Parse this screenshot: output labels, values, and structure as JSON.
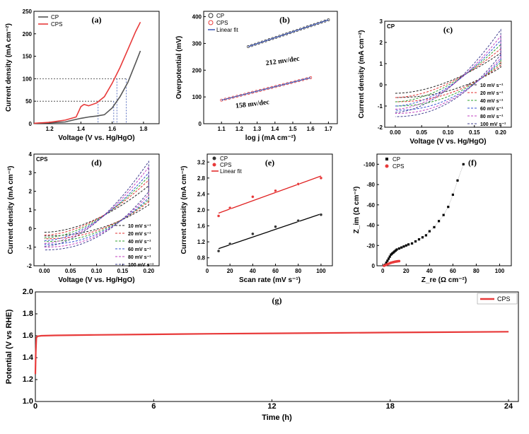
{
  "chart_data": [
    {
      "id": "a",
      "type": "line",
      "panel_label": "(a)",
      "xlabel": "Voltage (V vs. Hg/HgO)",
      "ylabel": "Current density (mA cm⁻²)",
      "xlim": [
        1.1,
        1.9
      ],
      "ylim": [
        0,
        250
      ],
      "xticks": [
        "1.2",
        "1.4",
        "1.6",
        "1.8"
      ],
      "yticks": [
        "0",
        "50",
        "100",
        "150",
        "200",
        "250"
      ],
      "legend_position": "top-left",
      "series": [
        {
          "name": "CP",
          "color": "#555555",
          "x": [
            1.1,
            1.2,
            1.3,
            1.35,
            1.4,
            1.45,
            1.5,
            1.55,
            1.6,
            1.65,
            1.7,
            1.75,
            1.78
          ],
          "y": [
            1,
            2,
            4,
            8,
            12,
            15,
            17,
            20,
            35,
            60,
            92,
            135,
            162
          ]
        },
        {
          "name": "CPS",
          "color": "#e83a3a",
          "x": [
            1.1,
            1.2,
            1.3,
            1.37,
            1.4,
            1.42,
            1.45,
            1.5,
            1.55,
            1.6,
            1.65,
            1.7,
            1.75,
            1.78
          ],
          "y": [
            1,
            3,
            8,
            15,
            38,
            43,
            40,
            46,
            60,
            90,
            125,
            165,
            205,
            226
          ]
        }
      ],
      "reference_lines": [
        {
          "y": 50,
          "x": [
            1.51,
            1.61
          ]
        },
        {
          "y": 100,
          "x": [
            1.63,
            1.69
          ]
        }
      ]
    },
    {
      "id": "b",
      "type": "scatter",
      "panel_label": "(b)",
      "xlabel": "log j (mA cm⁻²)",
      "ylabel": "Overpotential (mV)",
      "xlim": [
        1.0,
        1.75
      ],
      "ylim": [
        0,
        420
      ],
      "xticks": [
        "1.1",
        "1.2",
        "1.3",
        "1.4",
        "1.5",
        "1.6",
        "1.7"
      ],
      "yticks": [
        "0",
        "100",
        "200",
        "300",
        "400"
      ],
      "legend_position": "top-left",
      "linear_fit_label": "Linear fit",
      "series": [
        {
          "name": "CP",
          "color": "#333333",
          "x_range": [
            1.25,
            1.7
          ],
          "y_range": [
            288,
            388
          ],
          "slope_label": "212 mv/dec"
        },
        {
          "name": "CPS",
          "color": "#e83a3a",
          "x_range": [
            1.1,
            1.6
          ],
          "y_range": [
            88,
            172
          ],
          "slope_label": "158 mv/dec"
        }
      ],
      "fit_color": "#3a55b5"
    },
    {
      "id": "c",
      "type": "line",
      "panel_label": "(c)",
      "corner_label": "CP",
      "xlabel": "Voltage (V vs. Hg/HgO)",
      "ylabel": "Current density (mA cm⁻²)",
      "xlim": [
        -0.02,
        0.22
      ],
      "ylim": [
        -2,
        3
      ],
      "xticks": [
        "0.00",
        "0.05",
        "0.10",
        "0.15",
        "0.20"
      ],
      "yticks": [
        "-2",
        "-1",
        "0",
        "1",
        "2",
        "3"
      ],
      "legend_position": "right",
      "scan_rates": [
        "10 mV s⁻¹",
        "20 mV s⁻¹",
        "40 mV s⁻¹",
        "60 mV s⁻¹",
        "80 mV s⁻¹",
        "100 mV s⁻¹"
      ],
      "colors": [
        "#222222",
        "#e03030",
        "#30a030",
        "#3050d0",
        "#c040c0",
        "#404090"
      ],
      "anodic_top": [
        1.5,
        1.7,
        1.9,
        2.1,
        2.3,
        2.6
      ],
      "cathodic_bottom": [
        -0.6,
        -0.8,
        -1.0,
        -1.2,
        -1.35,
        -1.5
      ]
    },
    {
      "id": "d",
      "type": "line",
      "panel_label": "(d)",
      "corner_label": "CPS",
      "xlabel": "Voltage (V vs. Hg/HgO)",
      "ylabel": "Current density (mA cm⁻²)",
      "xlim": [
        -0.02,
        0.22
      ],
      "ylim": [
        -2,
        4
      ],
      "xticks": [
        "0.00",
        "0.05",
        "0.10",
        "0.15",
        "0.20"
      ],
      "yticks": [
        "-2",
        "-1",
        "0",
        "1",
        "2",
        "3",
        "4"
      ],
      "legend_position": "bottom-right",
      "scan_rates": [
        "10 mV s⁻¹",
        "20 mV s⁻¹",
        "40 mV s⁻¹",
        "60 mV s⁻¹",
        "80 mV s⁻¹",
        "100 mV s⁻¹"
      ],
      "colors": [
        "#222222",
        "#e03030",
        "#30a030",
        "#3050d0",
        "#c040c0",
        "#404090"
      ],
      "anodic_top": [
        2.3,
        2.6,
        2.8,
        3.0,
        3.3,
        3.6
      ],
      "cathodic_bottom": [
        -0.4,
        -0.55,
        -0.7,
        -0.85,
        -1.0,
        -1.15
      ]
    },
    {
      "id": "e",
      "type": "scatter",
      "panel_label": "(e)",
      "xlabel": "Scan rate (mV s⁻¹)",
      "ylabel": "Current density (mA cm⁻²)",
      "xlim": [
        0,
        110
      ],
      "ylim": [
        0.6,
        3.4
      ],
      "xticks": [
        "0",
        "20",
        "40",
        "60",
        "80",
        "100"
      ],
      "yticks": [
        "0.8",
        "1.2",
        "1.6",
        "2.0",
        "2.4",
        "2.8",
        "3.2"
      ],
      "legend_position": "top-left",
      "linear_fit_label": "Linear fit",
      "series": [
        {
          "name": "CP",
          "color": "#333333",
          "x": [
            10,
            20,
            40,
            60,
            80,
            100
          ],
          "y": [
            0.97,
            1.15,
            1.4,
            1.58,
            1.73,
            1.88
          ],
          "fit": [
            1.03,
            1.9
          ]
        },
        {
          "name": "CPS",
          "color": "#e83a3a",
          "x": [
            10,
            20,
            40,
            60,
            80,
            100
          ],
          "y": [
            1.85,
            2.05,
            2.33,
            2.48,
            2.65,
            2.8
          ],
          "fit": [
            1.92,
            2.85
          ]
        }
      ]
    },
    {
      "id": "f",
      "type": "scatter",
      "panel_label": "(f)",
      "xlabel": "Z_re (Ω cm⁻²)",
      "ylabel": "Z_im (Ω cm⁻²)",
      "xlim": [
        -5,
        110
      ],
      "ylim": [
        0,
        -110
      ],
      "xticks": [
        "0",
        "20",
        "40",
        "60",
        "80",
        "100"
      ],
      "yticks": [
        "0",
        "-20",
        "-40",
        "-60",
        "-80",
        "-100"
      ],
      "legend_position": "top-left",
      "series": [
        {
          "name": "CP",
          "color": "#000000",
          "x": [
            2,
            3,
            4,
            5,
            6,
            7,
            8,
            9,
            10,
            11,
            12,
            14,
            16,
            18,
            20,
            22,
            25,
            28,
            31,
            34,
            37,
            40,
            44,
            48,
            52,
            56,
            60,
            64,
            69
          ],
          "y": [
            -1,
            -3,
            -5,
            -7,
            -9,
            -11,
            -12,
            -13,
            -14,
            -15,
            -16,
            -17,
            -18,
            -19,
            -20,
            -21,
            -22,
            -24,
            -26,
            -28,
            -30,
            -34,
            -38,
            -44,
            -50,
            -58,
            -70,
            -84,
            -100
          ]
        },
        {
          "name": "CPS",
          "color": "#e83a3a",
          "x": [
            1,
            2,
            3,
            4,
            5,
            6,
            7,
            8,
            9,
            10,
            11,
            12,
            13,
            14
          ],
          "y": [
            0,
            -0.5,
            -1,
            -1.5,
            -2,
            -2.5,
            -3,
            -3.3,
            -3.6,
            -3.9,
            -4.1,
            -4.3,
            -4.5,
            -4.6
          ]
        }
      ]
    },
    {
      "id": "g",
      "type": "line",
      "panel_label": "(g)",
      "xlabel": "Time (h)",
      "ylabel": "Potential (V vs RHE)",
      "xlim": [
        0,
        24.5
      ],
      "ylim": [
        1.0,
        2.0
      ],
      "xticks": [
        "0",
        "6",
        "12",
        "18",
        "24"
      ],
      "yticks": [
        "1.0",
        "1.2",
        "1.4",
        "1.6",
        "1.8",
        "2.0"
      ],
      "legend_position": "top-right",
      "series": [
        {
          "name": "CPS",
          "color": "#e83a3a",
          "x": [
            0,
            0.02,
            0.05,
            0.1,
            0.3,
            1,
            3,
            6,
            9,
            12,
            15,
            18,
            21,
            24
          ],
          "y": [
            1.25,
            1.45,
            1.58,
            1.595,
            1.6,
            1.603,
            1.608,
            1.613,
            1.618,
            1.622,
            1.626,
            1.63,
            1.633,
            1.637
          ]
        }
      ]
    }
  ]
}
